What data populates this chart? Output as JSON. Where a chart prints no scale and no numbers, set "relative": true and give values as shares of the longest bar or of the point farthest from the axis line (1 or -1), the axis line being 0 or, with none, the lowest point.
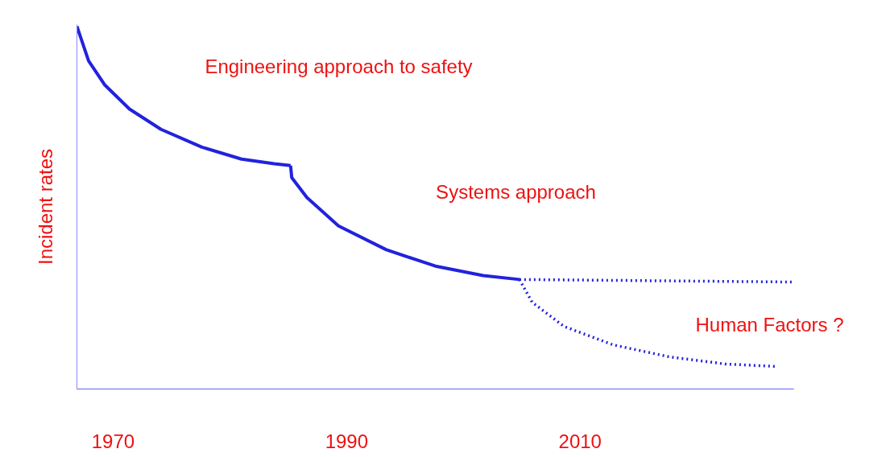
{
  "chart_data": {
    "type": "line",
    "relative": true,
    "ylabel": "Incident rates",
    "xlim": [
      1966.9,
      2028.3
    ],
    "xticks": [
      1970,
      1990,
      2010
    ],
    "tick_labels": "x",
    "grid": false,
    "marker": "none",
    "series": [
      {
        "color": "#2222dd",
        "line_style": "solid",
        "x": [
          1966.9,
          1967.9,
          1969.3,
          1971.4,
          1974.1,
          1977.6,
          1981.0,
          1983.8,
          1985.2
        ],
        "values": [
          1.0,
          0.905,
          0.838,
          0.772,
          0.716,
          0.667,
          0.634,
          0.621,
          0.616
        ]
      },
      {
        "color": "#2222dd",
        "line_style": "solid",
        "x": [
          1985.2,
          1985.3,
          1986.6,
          1989.3,
          1993.4,
          1997.6,
          2001.7,
          2004.8
        ],
        "values": [
          0.616,
          0.583,
          0.528,
          0.45,
          0.384,
          0.339,
          0.313,
          0.302
        ]
      },
      {
        "color": "#2222dd",
        "line_style": "dotted",
        "x": [
          2004.8,
          2028.3
        ],
        "values": [
          0.302,
          0.295
        ]
      },
      {
        "color": "#2222dd",
        "line_style": "dotted",
        "x": [
          2004.8,
          2005.9,
          2008.6,
          2012.8,
          2017.6,
          2022.4,
          2026.9
        ],
        "values": [
          0.302,
          0.239,
          0.173,
          0.122,
          0.089,
          0.069,
          0.062
        ]
      }
    ],
    "annotations": [
      "Engineering approach to safety",
      "Systems approach",
      "Human Factors ?"
    ]
  }
}
